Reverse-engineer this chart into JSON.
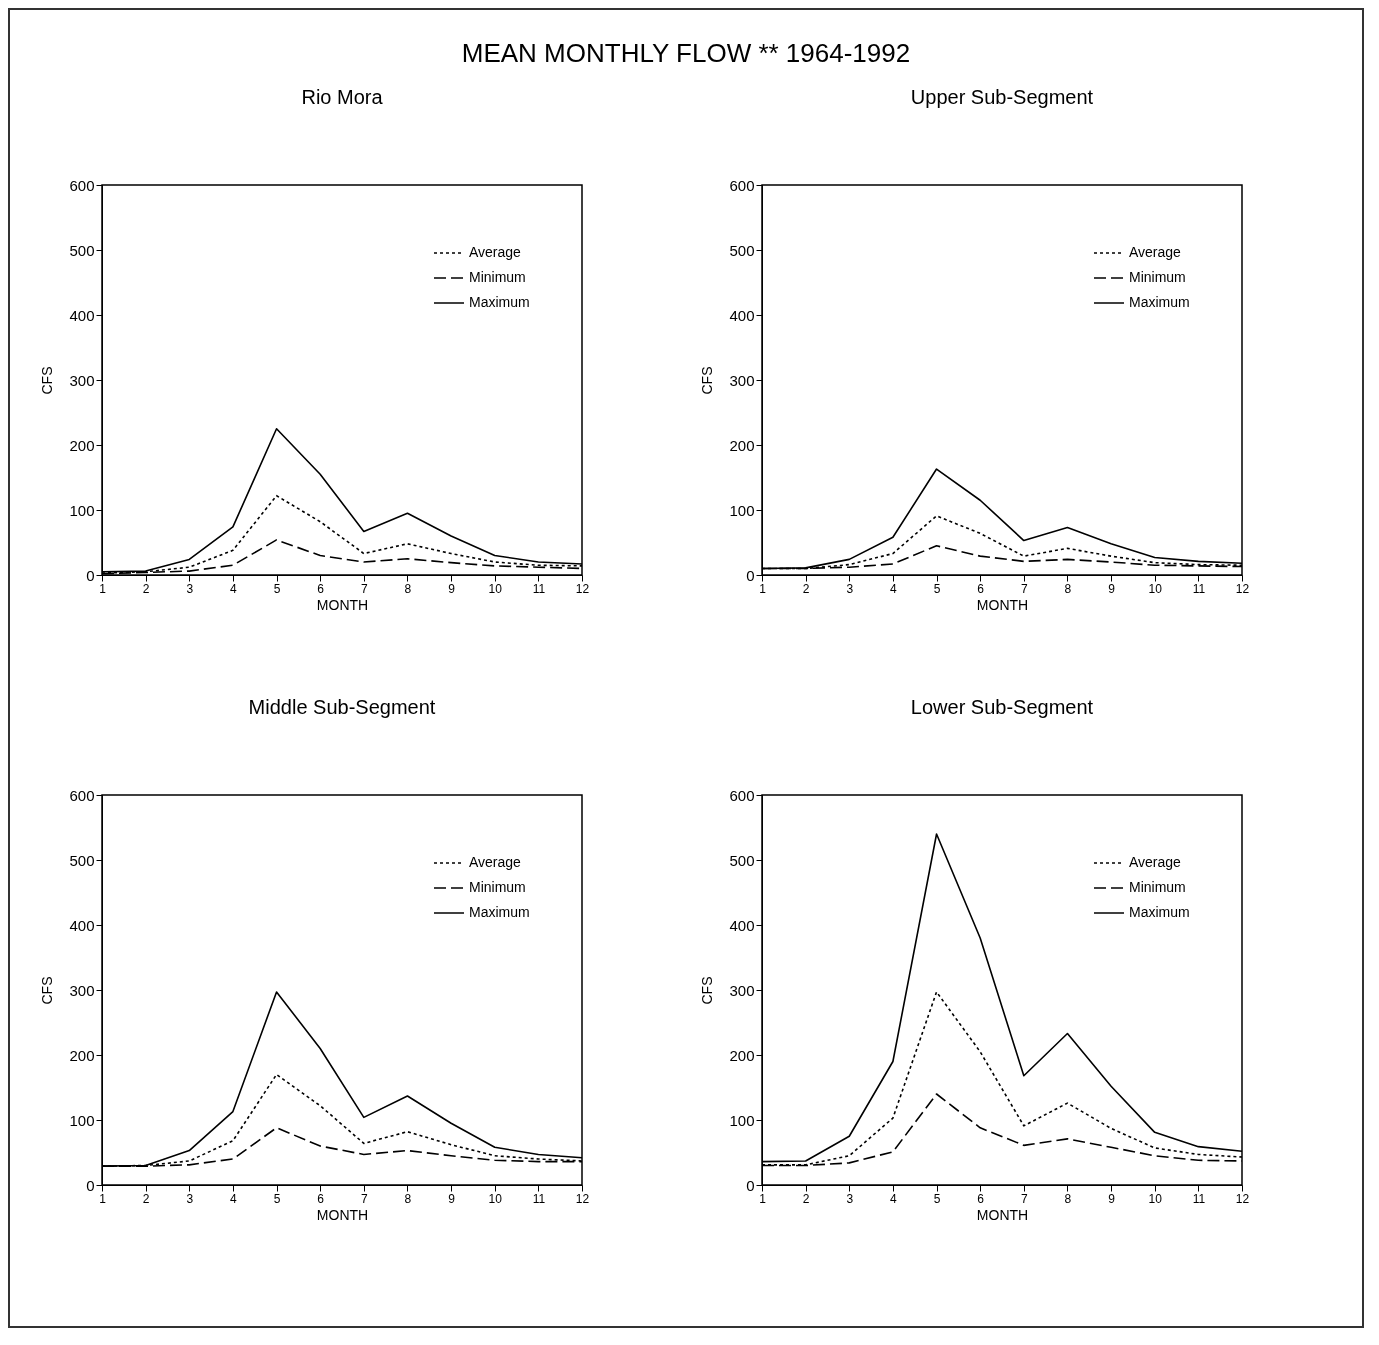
{
  "chart_data": [
    {
      "type": "line",
      "title": "MEAN MONTHLY FLOW ** 1964-1992",
      "subtitle": "Rio Mora",
      "xlabel": "MONTH",
      "ylabel": "CFS",
      "x": [
        1,
        2,
        3,
        4,
        5,
        6,
        7,
        8,
        9,
        10,
        11,
        12
      ],
      "xlim": [
        1,
        12
      ],
      "xticks": [
        1,
        2,
        3,
        4,
        5,
        6,
        7,
        8,
        9,
        10,
        11,
        12
      ],
      "ylim": [
        0,
        600
      ],
      "yticks": [
        0,
        100,
        200,
        300,
        400,
        500,
        600
      ],
      "legend": "top right",
      "series": [
        {
          "name": "Average",
          "color": "#000000",
          "line_style": "dotted",
          "values": [
            3,
            5,
            12,
            38,
            122,
            82,
            33,
            48,
            33,
            20,
            15,
            14
          ]
        },
        {
          "name": "Minimum",
          "color": "#000000",
          "line_style": "dashed",
          "values": [
            2,
            4,
            6,
            15,
            54,
            30,
            20,
            25,
            19,
            14,
            12,
            10
          ]
        },
        {
          "name": "Maximum",
          "color": "#000000",
          "line_style": "solid",
          "values": [
            5,
            6,
            24,
            74,
            225,
            155,
            67,
            95,
            60,
            30,
            20,
            17
          ]
        }
      ]
    },
    {
      "type": "line",
      "subtitle": "Upper Sub-Segment",
      "xlabel": "MONTH",
      "ylabel": "CFS",
      "x": [
        1,
        2,
        3,
        4,
        5,
        6,
        7,
        8,
        9,
        10,
        11,
        12
      ],
      "xlim": [
        1,
        12
      ],
      "xticks": [
        1,
        2,
        3,
        4,
        5,
        6,
        7,
        8,
        9,
        10,
        11,
        12
      ],
      "ylim": [
        0,
        600
      ],
      "yticks": [
        0,
        100,
        200,
        300,
        400,
        500,
        600
      ],
      "legend": "top right",
      "series": [
        {
          "name": "Average",
          "color": "#000000",
          "line_style": "dotted",
          "values": [
            10,
            10,
            16,
            33,
            91,
            64,
            29,
            41,
            29,
            19,
            16,
            15
          ]
        },
        {
          "name": "Minimum",
          "color": "#000000",
          "line_style": "dashed",
          "values": [
            10,
            10,
            12,
            17,
            45,
            29,
            21,
            24,
            20,
            15,
            14,
            13
          ]
        },
        {
          "name": "Maximum",
          "color": "#000000",
          "line_style": "solid",
          "values": [
            10,
            11,
            24,
            58,
            163,
            115,
            53,
            73,
            48,
            27,
            21,
            18
          ]
        }
      ]
    },
    {
      "type": "line",
      "subtitle": "Middle Sub-Segment",
      "xlabel": "MONTH",
      "ylabel": "CFS",
      "x": [
        1,
        2,
        3,
        4,
        5,
        6,
        7,
        8,
        9,
        10,
        11,
        12
      ],
      "xlim": [
        1,
        12
      ],
      "xticks": [
        1,
        2,
        3,
        4,
        5,
        6,
        7,
        8,
        9,
        10,
        11,
        12
      ],
      "ylim": [
        0,
        600
      ],
      "yticks": [
        0,
        100,
        200,
        300,
        400,
        500,
        600
      ],
      "legend": "top right",
      "series": [
        {
          "name": "Average",
          "color": "#000000",
          "line_style": "dotted",
          "values": [
            29,
            30,
            37,
            68,
            170,
            122,
            64,
            82,
            62,
            45,
            40,
            37
          ]
        },
        {
          "name": "Minimum",
          "color": "#000000",
          "line_style": "dashed",
          "values": [
            29,
            29,
            31,
            40,
            88,
            60,
            47,
            53,
            45,
            38,
            36,
            36
          ]
        },
        {
          "name": "Maximum",
          "color": "#000000",
          "line_style": "solid",
          "values": [
            29,
            30,
            53,
            113,
            297,
            210,
            104,
            137,
            95,
            58,
            47,
            42
          ]
        }
      ]
    },
    {
      "type": "line",
      "subtitle": "Lower Sub-Segment",
      "xlabel": "MONTH",
      "ylabel": "CFS",
      "x": [
        1,
        2,
        3,
        4,
        5,
        6,
        7,
        8,
        9,
        10,
        11,
        12
      ],
      "xlim": [
        1,
        12
      ],
      "xticks": [
        1,
        2,
        3,
        4,
        5,
        6,
        7,
        8,
        9,
        10,
        11,
        12
      ],
      "ylim": [
        0,
        600
      ],
      "yticks": [
        0,
        100,
        200,
        300,
        400,
        500,
        600
      ],
      "legend": "top right",
      "series": [
        {
          "name": "Average",
          "color": "#000000",
          "line_style": "dotted",
          "values": [
            31,
            31,
            45,
            103,
            297,
            205,
            91,
            126,
            87,
            57,
            47,
            43
          ]
        },
        {
          "name": "Minimum",
          "color": "#000000",
          "line_style": "dashed",
          "values": [
            30,
            30,
            34,
            51,
            140,
            88,
            61,
            71,
            58,
            45,
            38,
            37
          ]
        },
        {
          "name": "Maximum",
          "color": "#000000",
          "line_style": "solid",
          "values": [
            36,
            37,
            75,
            190,
            540,
            380,
            168,
            233,
            152,
            81,
            59,
            52
          ]
        }
      ]
    }
  ]
}
